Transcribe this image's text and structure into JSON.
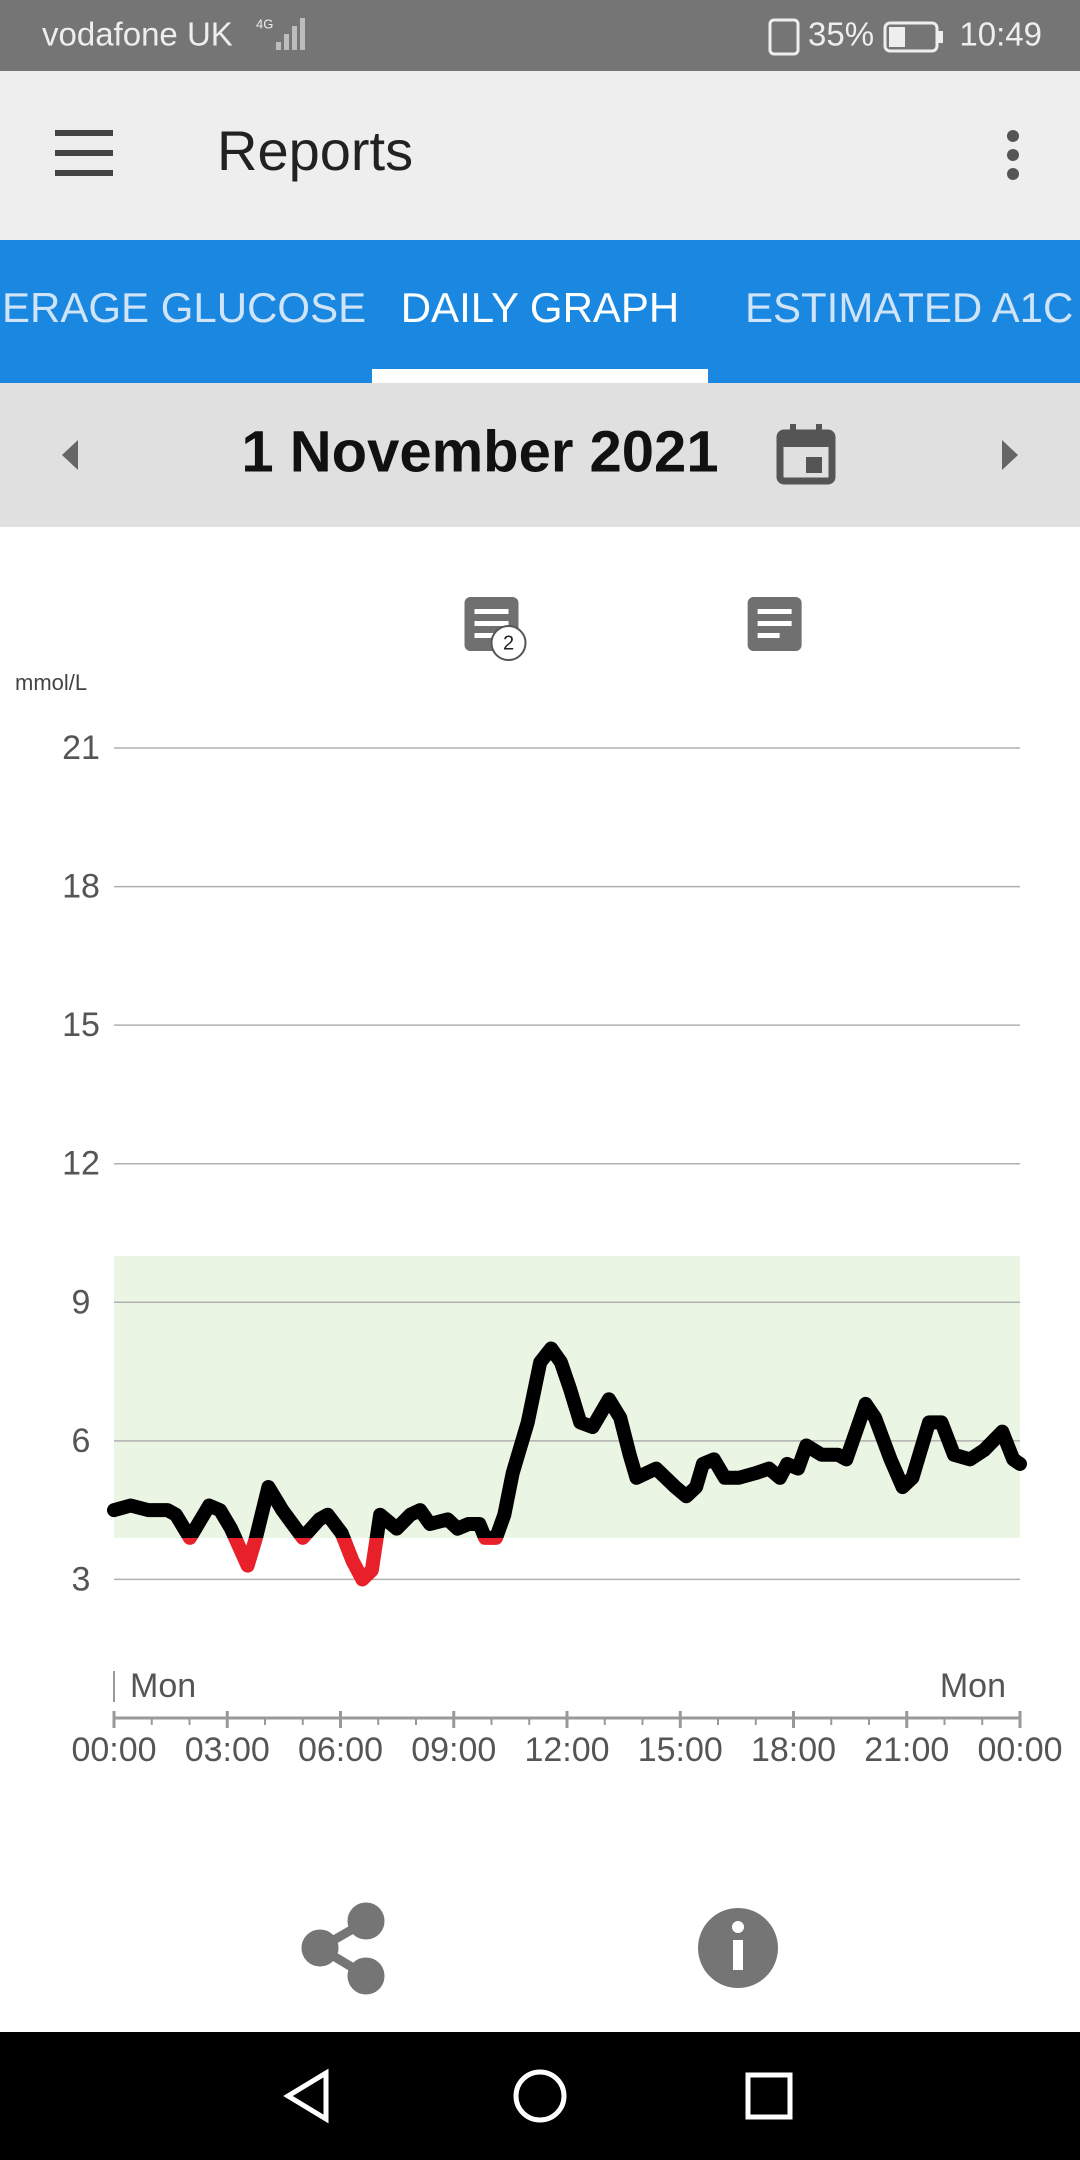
{
  "status_bar": {
    "carrier": "vodafone UK",
    "network": "4G",
    "battery": "35%",
    "time": "10:49"
  },
  "app_bar": {
    "title": "Reports"
  },
  "tabs": [
    "ERAGE GLUCOSE",
    "DAILY GRAPH",
    "ESTIMATED A1C"
  ],
  "date_bar": {
    "date": "1 November 2021"
  },
  "chart_data": {
    "type": "line",
    "y_label": "mmol/L",
    "x": [
      0,
      0.44,
      0.91,
      1.42,
      1.64,
      2.01,
      2.52,
      2.81,
      3.1,
      3.54,
      3.76,
      4.09,
      4.46,
      5,
      5.44,
      5.66,
      6.03,
      6.32,
      6.58,
      6.83,
      7.05,
      7.49,
      7.85,
      8.11,
      8.37,
      8.84,
      9.1,
      9.39,
      9.68,
      9.83,
      10.12,
      10.34,
      10.56,
      10.96,
      11.29,
      11.58,
      11.84,
      12.09,
      12.35,
      12.68,
      13.11,
      13.41,
      13.66,
      13.84,
      14.36,
      14.87,
      15.16,
      15.42,
      15.6,
      15.89,
      16.18,
      16.55,
      16.99,
      17.35,
      17.64,
      17.83,
      18.12,
      18.34,
      18.74,
      19.18,
      19.4,
      19.91,
      20.16,
      20.57,
      20.89,
      21.15,
      21.59,
      21.92,
      22.25,
      22.68,
      23.05,
      23.53,
      23.82,
      24
    ],
    "series": [
      {
        "color": "#000000",
        "low_color": "#e8202a",
        "values": [
          4.5,
          4.6,
          4.5,
          4.5,
          4.4,
          3.9,
          4.6,
          4.5,
          4.1,
          3.3,
          3.9,
          5,
          4.5,
          3.9,
          4.3,
          4.4,
          4,
          3.4,
          3,
          3.2,
          4.4,
          4.1,
          4.4,
          4.5,
          4.2,
          4.3,
          4.1,
          4.2,
          4.2,
          3.9,
          3.9,
          4.4,
          5.3,
          6.4,
          7.7,
          8,
          7.7,
          7.1,
          6.4,
          6.3,
          6.9,
          6.5,
          5.7,
          5.2,
          5.4,
          5,
          4.8,
          5,
          5.5,
          5.6,
          5.2,
          5.2,
          5.3,
          5.4,
          5.2,
          5.5,
          5.4,
          5.9,
          5.7,
          5.7,
          5.6,
          6.8,
          6.5,
          5.6,
          5,
          5.2,
          6.4,
          6.4,
          5.7,
          5.6,
          5.8,
          6.2,
          5.6,
          5.5
        ]
      }
    ],
    "target_range": [
      3.9,
      10
    ],
    "target_color": "#ebf5e4",
    "xlim": [
      0,
      24
    ],
    "ylim": [
      0,
      21
    ],
    "yticks": [
      3,
      6,
      9,
      12,
      15,
      18,
      21
    ],
    "grid": true,
    "xticks": [
      {
        "value": 0,
        "label": "00:00"
      },
      {
        "value": 3,
        "label": "03:00"
      },
      {
        "value": 6,
        "label": "06:00"
      },
      {
        "value": 9,
        "label": "09:00"
      },
      {
        "value": 12,
        "label": "12:00"
      },
      {
        "value": 15,
        "label": "15:00"
      },
      {
        "value": 18,
        "label": "18:00"
      },
      {
        "value": 21,
        "label": "21:00"
      },
      {
        "value": 24,
        "label": "00:00"
      }
    ],
    "xminorticks": [
      1,
      2,
      4,
      5,
      7,
      8,
      10,
      11,
      13,
      14,
      16,
      17,
      19,
      20,
      22,
      23
    ],
    "day_labels": [
      "Mon",
      "Mon"
    ],
    "notes": [
      {
        "x": 10,
        "count": 2
      },
      {
        "x": 17.5
      }
    ]
  }
}
